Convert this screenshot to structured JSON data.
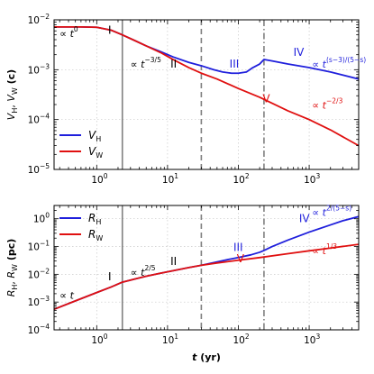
{
  "chart_data": [
    {
      "type": "line",
      "panel": "top",
      "xlabel": "",
      "ylabel": {
        "main": "V",
        "sub1": "H",
        "mid": ", V",
        "sub2": "W",
        "unit": " (c)"
      },
      "xscale": "log",
      "yscale": "log",
      "xlim": [
        0.25,
        5000
      ],
      "ylim": [
        1e-05,
        0.01
      ],
      "grid": true,
      "legend": "lower-left",
      "x_tick_labels": [
        {
          "base": "10",
          "exp": "0"
        },
        {
          "base": "10",
          "exp": "1"
        },
        {
          "base": "10",
          "exp": "2"
        },
        {
          "base": "10",
          "exp": "3"
        }
      ],
      "y_tick_labels": [
        {
          "base": "10",
          "exp": "−5"
        },
        {
          "base": "10",
          "exp": "−4"
        },
        {
          "base": "10",
          "exp": "−3"
        },
        {
          "base": "10",
          "exp": "−2"
        }
      ],
      "series": [
        {
          "name": "V",
          "sub": "H",
          "color": "#1f1fdc",
          "x": [
            0.25,
            0.6,
            1.0,
            1.6,
            2.3,
            3.5,
            5,
            8,
            12,
            20,
            30,
            45,
            60,
            80,
            100,
            130,
            160,
            200,
            230,
            300,
            500,
            1000,
            2000,
            5000
          ],
          "y": [
            0.0072,
            0.0072,
            0.0071,
            0.0062,
            0.005,
            0.0038,
            0.003,
            0.0023,
            0.0018,
            0.0014,
            0.0012,
            0.001,
            0.0009,
            0.00085,
            0.00085,
            0.0009,
            0.0011,
            0.0013,
            0.0016,
            0.0015,
            0.0013,
            0.0011,
            0.0009,
            0.00065
          ]
        },
        {
          "name": "V",
          "sub": "W",
          "color": "#e01010",
          "x": [
            0.25,
            0.6,
            1.0,
            1.6,
            2.3,
            3.5,
            5,
            8,
            12,
            20,
            30,
            50,
            100,
            200,
            500,
            1000,
            2000,
            5000
          ],
          "y": [
            0.0072,
            0.0072,
            0.0071,
            0.0062,
            0.005,
            0.0038,
            0.003,
            0.0022,
            0.0016,
            0.0011,
            0.00085,
            0.00065,
            0.00042,
            0.00028,
            0.00015,
            0.0001,
            6.2e-05,
            3e-05
          ]
        }
      ],
      "vlines": [
        {
          "x": 2.3,
          "style": "solid",
          "color": "#808080"
        },
        {
          "x": 30,
          "style": "dashed",
          "color": "#808080"
        },
        {
          "x": 230,
          "style": "dashdot",
          "color": "#808080"
        }
      ],
      "annotations": [
        {
          "text": "∝ t",
          "sup": "0",
          "at": [
            0.3,
            0.0045
          ],
          "color": "#000000"
        },
        {
          "text": "I",
          "at": [
            1.45,
            0.0052
          ],
          "color": "#000000"
        },
        {
          "text": "∝ t",
          "sup": "−3/5",
          "at": [
            3.0,
            0.0011
          ],
          "color": "#000000"
        },
        {
          "text": "II",
          "at": [
            11.0,
            0.0011
          ],
          "color": "#000000"
        },
        {
          "text": "III",
          "at": [
            75,
            0.0011
          ],
          "color": "#1f1fdc"
        },
        {
          "text": "IV",
          "at": [
            600,
            0.0019
          ],
          "color": "#1f1fdc"
        },
        {
          "text": "∝ t",
          "sup": "(s−3)/(5−s)",
          "at": [
            1100,
            0.0011
          ],
          "color": "#1f1fdc"
        },
        {
          "text": "V",
          "at": [
            220,
            0.00022
          ],
          "color": "#e01010"
        },
        {
          "text": "∝ t",
          "sup": "−2/3",
          "at": [
            1100,
            0.000165
          ],
          "color": "#e01010"
        }
      ]
    },
    {
      "type": "line",
      "panel": "bottom",
      "xlabel": {
        "main": "t",
        "unit": " (yr)"
      },
      "ylabel": {
        "main": "R",
        "sub1": "H",
        "mid": ", R",
        "sub2": "W",
        "unit": " (pc)"
      },
      "xscale": "log",
      "yscale": "log",
      "xlim": [
        0.25,
        5000
      ],
      "ylim": [
        0.0001,
        3
      ],
      "grid": true,
      "legend": "top-left",
      "x_tick_labels": [
        {
          "base": "10",
          "exp": "0"
        },
        {
          "base": "10",
          "exp": "1"
        },
        {
          "base": "10",
          "exp": "2"
        },
        {
          "base": "10",
          "exp": "3"
        }
      ],
      "y_tick_labels": [
        {
          "base": "10",
          "exp": "−4"
        },
        {
          "base": "10",
          "exp": "−3"
        },
        {
          "base": "10",
          "exp": "−2"
        },
        {
          "base": "10",
          "exp": "−1"
        },
        {
          "base": "10",
          "exp": "0"
        }
      ],
      "series": [
        {
          "name": "R",
          "sub": "H",
          "color": "#1f1fdc",
          "x": [
            0.25,
            0.5,
            1.0,
            1.6,
            2.3,
            3.5,
            5,
            8,
            12,
            20,
            30,
            50,
            80,
            100,
            150,
            200,
            230,
            300,
            500,
            1000,
            2000,
            3000,
            5000
          ],
          "y": [
            0.00055,
            0.0011,
            0.0022,
            0.0035,
            0.0052,
            0.0068,
            0.0085,
            0.011,
            0.0135,
            0.0175,
            0.021,
            0.028,
            0.036,
            0.04,
            0.05,
            0.062,
            0.072,
            0.1,
            0.17,
            0.33,
            0.6,
            0.85,
            1.2
          ]
        },
        {
          "name": "R",
          "sub": "W",
          "color": "#e01010",
          "x": [
            0.25,
            0.5,
            1.0,
            1.6,
            2.3,
            3.5,
            5,
            8,
            12,
            20,
            30,
            50,
            100,
            200,
            500,
            1000,
            2000,
            5000
          ],
          "y": [
            0.00055,
            0.0011,
            0.0022,
            0.0035,
            0.0052,
            0.0068,
            0.0085,
            0.011,
            0.0135,
            0.0175,
            0.021,
            0.0255,
            0.032,
            0.04,
            0.055,
            0.07,
            0.088,
            0.12
          ]
        }
      ],
      "vlines": [
        {
          "x": 2.3,
          "style": "solid",
          "color": "#808080"
        },
        {
          "x": 30,
          "style": "dashed",
          "color": "#808080"
        },
        {
          "x": 230,
          "style": "dashdot",
          "color": "#808080"
        }
      ],
      "annotations": [
        {
          "text": "∝ t",
          "at": [
            0.3,
            0.0013
          ],
          "color": "#000000"
        },
        {
          "text": "I",
          "at": [
            1.45,
            0.0062
          ],
          "color": "#000000"
        },
        {
          "text": "∝ t",
          "sup": "2/5",
          "at": [
            3.0,
            0.0088
          ],
          "color": "#000000"
        },
        {
          "text": "II",
          "at": [
            11.0,
            0.022
          ],
          "color": "#000000"
        },
        {
          "text": "III",
          "at": [
            85,
            0.068
          ],
          "color": "#1f1fdc"
        },
        {
          "text": "IV",
          "at": [
            720,
            0.75
          ],
          "color": "#1f1fdc"
        },
        {
          "text": "∝ t",
          "sup": "2/(5−s)",
          "at": [
            1100,
            1.25
          ],
          "color": "#1f1fdc"
        },
        {
          "text": "V",
          "at": [
            95,
            0.027
          ],
          "color": "#e01010"
        },
        {
          "text": "∝ t",
          "sup": "1/3",
          "at": [
            1100,
            0.054
          ],
          "color": "#e01010"
        }
      ]
    }
  ]
}
